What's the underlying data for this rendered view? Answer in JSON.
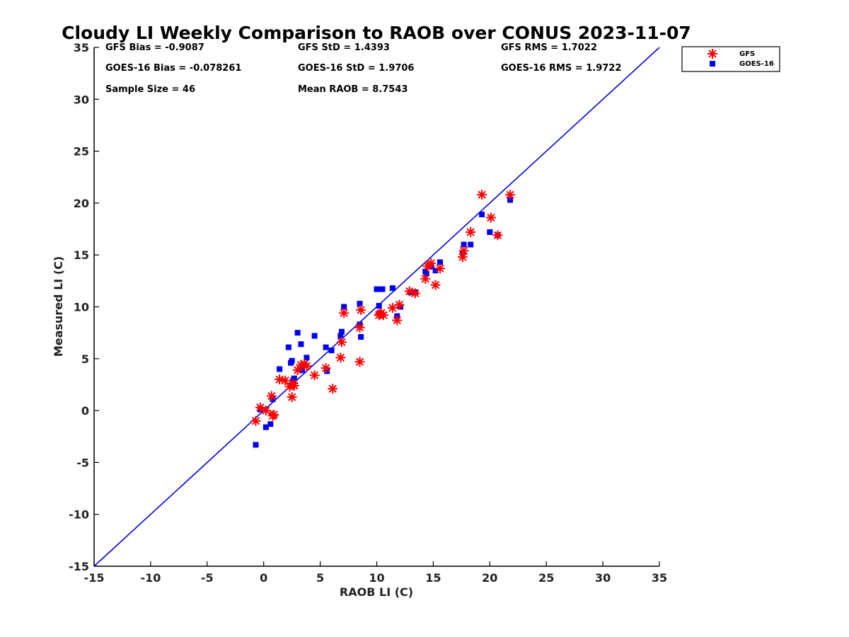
{
  "chart_data": {
    "type": "scatter",
    "title": "Cloudy LI Weekly Comparison to RAOB over CONUS 2023-11-07",
    "xlabel": "RAOB LI (C)",
    "ylabel": "Measured LI (C)",
    "xlim": [
      -15,
      35
    ],
    "ylim": [
      -15,
      35
    ],
    "xticks": [
      -15,
      -10,
      -5,
      0,
      5,
      10,
      15,
      20,
      25,
      30,
      35
    ],
    "yticks": [
      -15,
      -10,
      -5,
      0,
      5,
      10,
      15,
      20,
      25,
      30,
      35
    ],
    "grid": false,
    "legend_position": "top-right",
    "reference_line": {
      "x": [
        -15,
        35
      ],
      "y": [
        -15,
        35
      ],
      "color": "#0000dd"
    },
    "stats": [
      [
        "GFS Bias = -0.9087",
        "GFS StD = 1.4393",
        "GFS RMS = 1.7022"
      ],
      [
        "GOES-16 Bias = -0.078261",
        "GOES-16 StD = 1.9706",
        "GOES-16 RMS = 1.9722"
      ],
      [
        "Sample Size = 46",
        "Mean RAOB = 8.7543",
        ""
      ]
    ],
    "series": [
      {
        "name": "GFS",
        "marker": "asterisk",
        "color": "#ff0000",
        "x": [
          -0.7,
          -0.3,
          0.2,
          0.7,
          0.8,
          0.9,
          1.4,
          1.9,
          2.3,
          2.5,
          2.6,
          2.7,
          3.0,
          3.3,
          3.6,
          3.8,
          4.5,
          5.5,
          6.1,
          6.8,
          6.9,
          7.1,
          8.5,
          8.5,
          8.6,
          10.2,
          10.3,
          10.6,
          11.4,
          11.8,
          12.0,
          12.9,
          13.4,
          14.3,
          14.5,
          14.8,
          15.2,
          15.6,
          17.6,
          17.7,
          18.3,
          19.3,
          20.1,
          20.7,
          21.8,
          10.4
        ],
        "y": [
          -1.0,
          0.3,
          0.0,
          1.4,
          -0.5,
          -0.4,
          3.0,
          2.9,
          2.3,
          1.3,
          2.6,
          2.4,
          3.9,
          4.4,
          4.5,
          4.3,
          3.4,
          4.1,
          2.1,
          5.1,
          6.6,
          9.4,
          4.7,
          8.0,
          9.7,
          9.2,
          9.3,
          9.2,
          9.9,
          8.7,
          10.2,
          11.5,
          11.3,
          12.7,
          13.9,
          14.2,
          12.1,
          13.7,
          14.8,
          15.4,
          17.2,
          20.8,
          18.6,
          16.9,
          20.8,
          9.4
        ]
      },
      {
        "name": "GOES-16",
        "marker": "square",
        "color": "#0000ee",
        "x": [
          -0.7,
          -0.3,
          0.2,
          0.6,
          0.8,
          1.4,
          2.2,
          2.4,
          2.5,
          2.6,
          2.7,
          3.0,
          3.3,
          3.4,
          3.8,
          4.5,
          5.5,
          5.6,
          6.0,
          6.8,
          6.9,
          7.1,
          8.5,
          8.5,
          8.6,
          10.0,
          10.2,
          10.5,
          11.4,
          11.8,
          12.1,
          13.0,
          13.4,
          14.3,
          14.4,
          14.8,
          15.2,
          15.6,
          17.6,
          17.7,
          18.3,
          19.3,
          20.0,
          20.7,
          21.8,
          2.6
        ],
        "y": [
          -3.3,
          0.1,
          -1.6,
          -1.3,
          1.1,
          4.0,
          6.1,
          4.6,
          4.8,
          2.9,
          3.1,
          7.5,
          6.4,
          3.9,
          5.1,
          7.2,
          6.1,
          3.8,
          5.8,
          7.2,
          7.6,
          10.0,
          8.3,
          10.3,
          7.1,
          11.7,
          10.1,
          11.7,
          11.8,
          9.1,
          10.0,
          11.4,
          11.4,
          13.4,
          13.2,
          13.9,
          13.5,
          14.3,
          15.2,
          16.0,
          16.0,
          18.9,
          17.2,
          16.9,
          20.3,
          2.5
        ]
      }
    ]
  }
}
